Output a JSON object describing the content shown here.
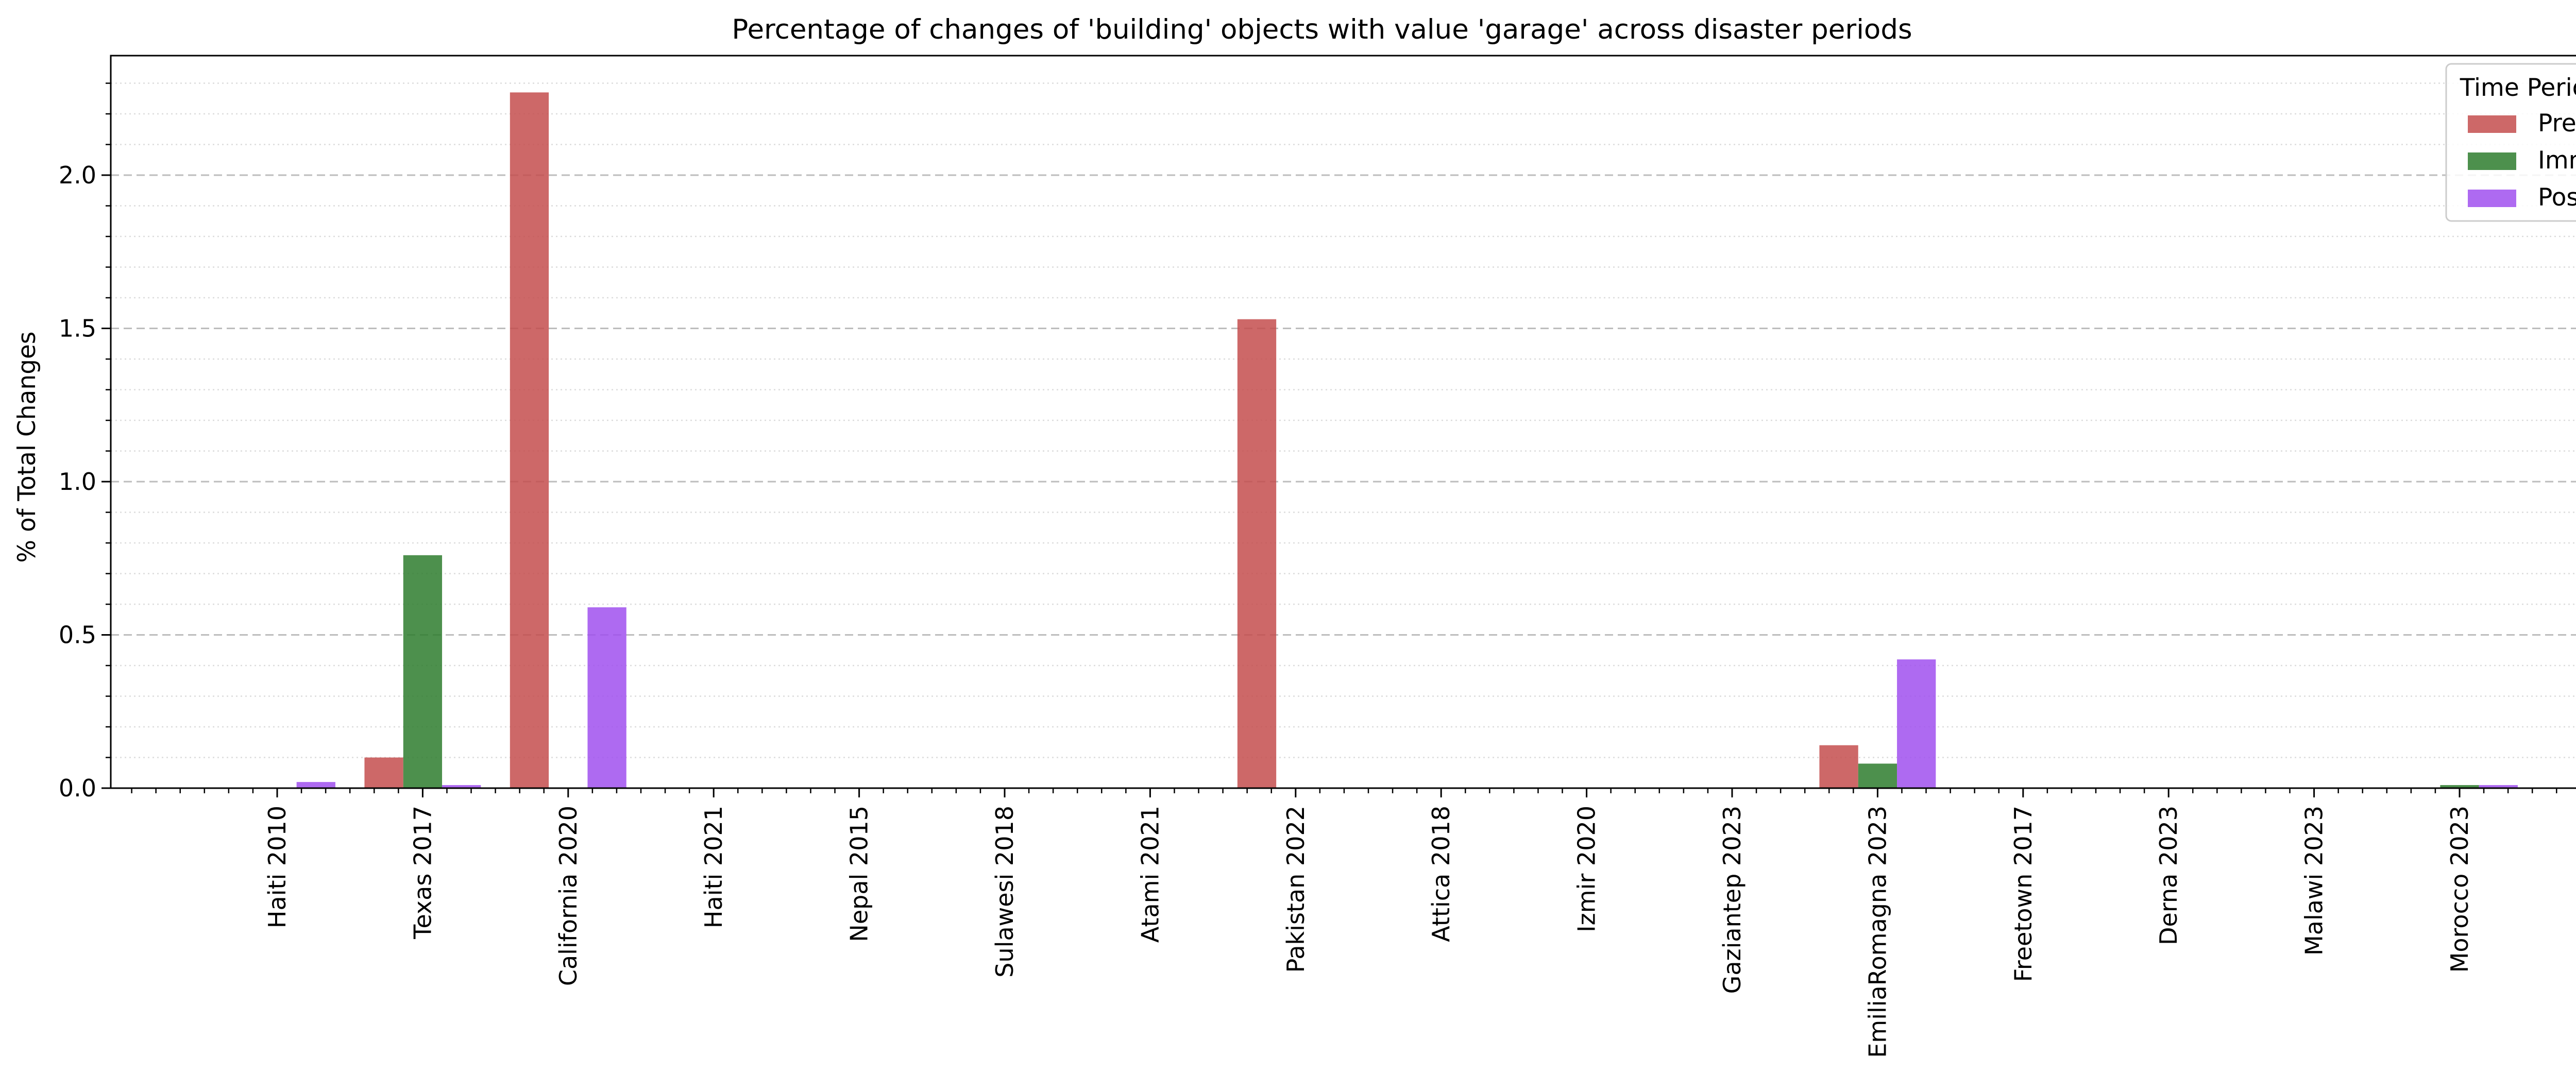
{
  "chart_data": {
    "type": "bar",
    "title": "Percentage of changes of 'building' objects with value 'garage' across disaster periods",
    "xlabel": "",
    "ylabel": "% of Total Changes",
    "ylim": [
      0,
      2.39
    ],
    "yticks": [
      0.0,
      0.5,
      1.0,
      1.5,
      2.0
    ],
    "ytick_labels": [
      "0.0",
      "0.5",
      "1.0",
      "1.5",
      "2.0"
    ],
    "y_minor_step": 0.1,
    "grid": {
      "major": "dashed",
      "minor": "dotted",
      "axis": "y"
    },
    "categories": [
      "Haiti 2010",
      "Texas 2017",
      "California 2020",
      "Haiti 2021",
      "Nepal 2015",
      "Sulawesi 2018",
      "Atami 2021",
      "Pakistan 2022",
      "Attica 2018",
      "Izmir 2020",
      "Gaziantep 2023",
      "EmiliaRomagna 2023",
      "Freetown 2017",
      "Derna 2023",
      "Malawi 2023",
      "Morocco 2023"
    ],
    "series": [
      {
        "name": "Pre",
        "color": "#c44e4e",
        "values": [
          0,
          0.1,
          2.27,
          0,
          0,
          0,
          0,
          1.53,
          0,
          0,
          0,
          0.14,
          0,
          0,
          0,
          0
        ]
      },
      {
        "name": "Imm",
        "color": "#2e7d2e",
        "values": [
          0,
          0.76,
          0,
          0,
          0,
          0,
          0,
          0,
          0,
          0,
          0,
          0.08,
          0,
          0,
          0,
          0.01
        ]
      },
      {
        "name": "Post",
        "color": "#a050ee",
        "values": [
          0.02,
          0.01,
          0.59,
          0,
          0,
          0,
          0,
          0,
          0,
          0,
          0,
          0.42,
          0,
          0,
          0,
          0.01
        ]
      }
    ],
    "legend": {
      "title": "Time Period",
      "placement": "top-right"
    }
  }
}
